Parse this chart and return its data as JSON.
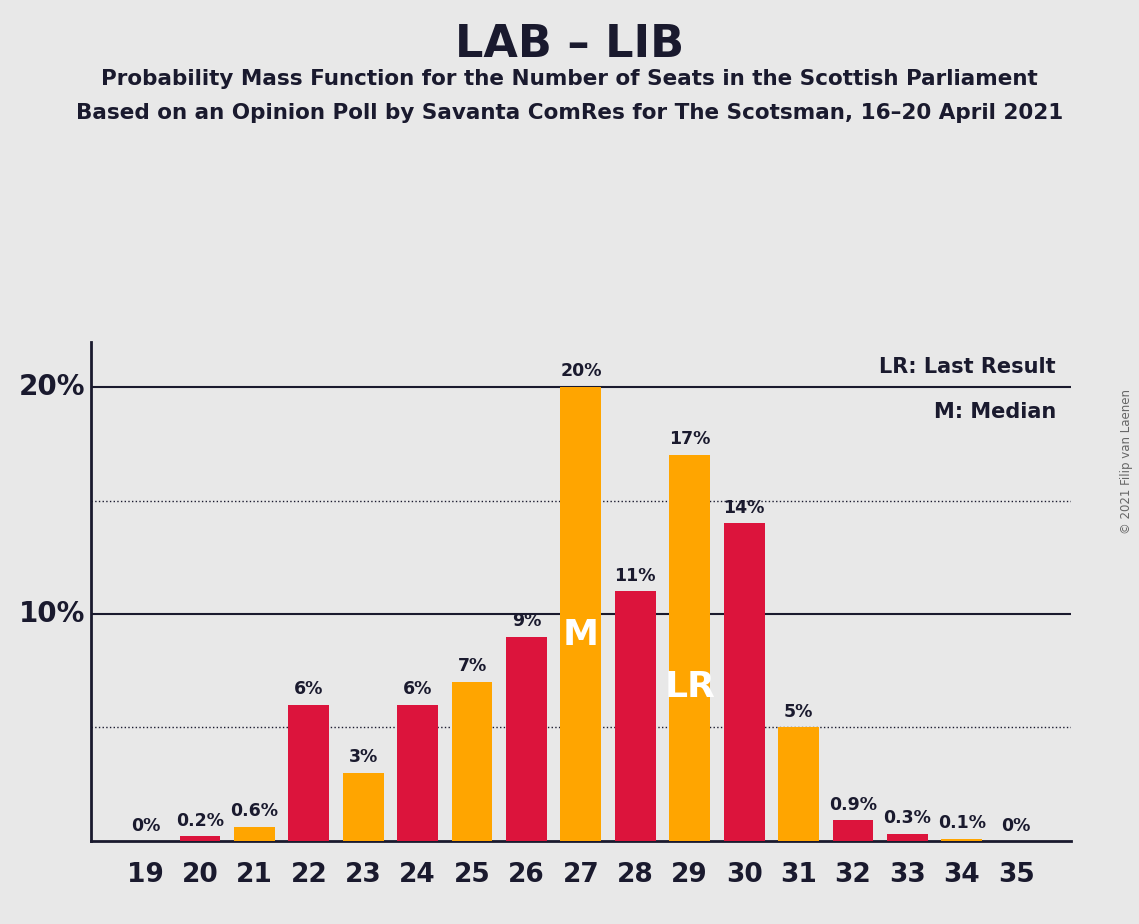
{
  "title": "LAB – LIB",
  "subtitle1": "Probability Mass Function for the Number of Seats in the Scottish Parliament",
  "subtitle2": "Based on an Opinion Poll by Savanta ComRes for The Scotsman, 16–20 April 2021",
  "copyright": "© 2021 Filip van Laenen",
  "seats": [
    19,
    20,
    21,
    22,
    23,
    24,
    25,
    26,
    27,
    28,
    29,
    30,
    31,
    32,
    33,
    34,
    35
  ],
  "values": [
    0.0,
    0.2,
    0.6,
    6.0,
    3.0,
    6.0,
    7.0,
    9.0,
    20.0,
    11.0,
    17.0,
    14.0,
    5.0,
    0.9,
    0.3,
    0.1,
    0.0
  ],
  "colors": [
    "#DC143C",
    "#DC143C",
    "#FFA500",
    "#DC143C",
    "#FFA500",
    "#DC143C",
    "#FFA500",
    "#DC143C",
    "#FFA500",
    "#DC143C",
    "#FFA500",
    "#DC143C",
    "#FFA500",
    "#DC143C",
    "#DC143C",
    "#FFA500",
    "#FFA500"
  ],
  "bar_labels": [
    "0%",
    "0.2%",
    "0.6%",
    "6%",
    "3%",
    "6%",
    "7%",
    "9%",
    "20%",
    "11%",
    "17%",
    "14%",
    "5%",
    "0.9%",
    "0.3%",
    "0.1%",
    "0%"
  ],
  "lab_color": "#DC143C",
  "lib_color": "#FFA500",
  "background_color": "#E8E8E8",
  "annotation_color": "#1a1a2e",
  "median_idx": 8,
  "last_result_idx": 10,
  "ylim": [
    0,
    22
  ],
  "hlines_solid": [
    10.0,
    20.0
  ],
  "hlines_dotted": [
    5.0,
    15.0
  ]
}
